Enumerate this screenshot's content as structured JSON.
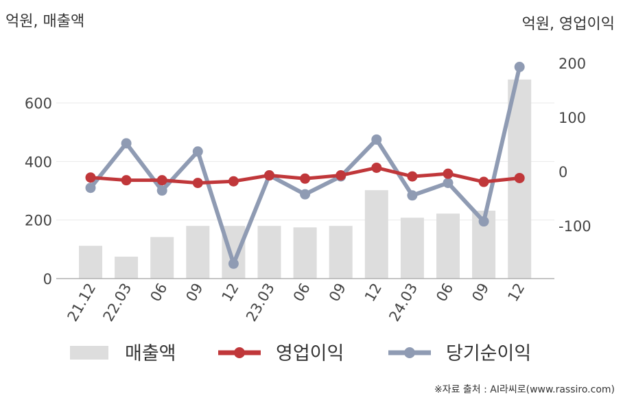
{
  "chart_data": {
    "type": "bar+line",
    "left_axis_title": "억원, 매출액",
    "right_axis_title": "억원, 영업이익",
    "categories": [
      "21.12",
      "22.03",
      "06",
      "09",
      "12",
      "23.03",
      "06",
      "09",
      "12",
      "24.03",
      "06",
      "09",
      "12"
    ],
    "left_ticks": [
      "0",
      "200",
      "400",
      "600"
    ],
    "right_ticks": [
      "200",
      "100",
      "0",
      "-100"
    ],
    "left_ylim": [
      0,
      800
    ],
    "right_ylim": [
      -200,
      200
    ],
    "series": [
      {
        "name": "매출액",
        "kind": "bar",
        "axis": "left",
        "color": "#dddddd",
        "values": [
          112,
          75,
          142,
          180,
          180,
          180,
          175,
          180,
          302,
          208,
          222,
          232,
          680
        ]
      },
      {
        "name": "영업이익",
        "kind": "line",
        "axis": "right",
        "color": "#c0373a",
        "values": [
          -11,
          -16,
          -16,
          -21,
          -18,
          -7,
          -13,
          -7,
          7,
          -9,
          -4,
          -19,
          -12
        ]
      },
      {
        "name": "당기순이익",
        "kind": "line",
        "axis": "right",
        "color": "#8f9bb3",
        "values": [
          -30,
          52,
          -35,
          37,
          -170,
          -7,
          -42,
          -9,
          59,
          -44,
          -21,
          -92,
          193
        ]
      }
    ],
    "gridlines": true,
    "legend_position": "bottom"
  },
  "source_text": "※자료 출처 : AI라씨로(www.rassiro.com)"
}
